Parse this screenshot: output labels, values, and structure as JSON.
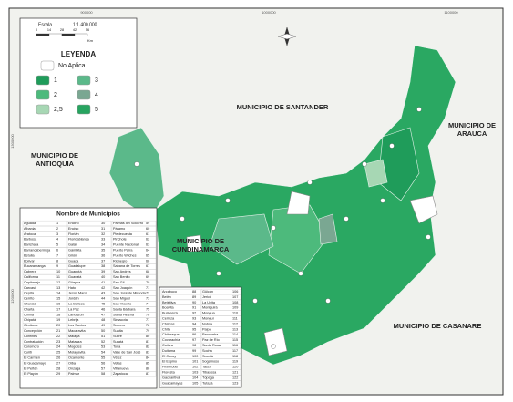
{
  "legend": {
    "title": "LEYENDA",
    "items": [
      {
        "label": "No Aplica",
        "color": "#ffffff"
      },
      {
        "label": "1",
        "color": "#1f9c5a"
      },
      {
        "label": "2",
        "color": "#4dba7c"
      },
      {
        "label": "2,5",
        "color": "#a7d7b4"
      },
      {
        "label": "3",
        "color": "#5bb98a"
      },
      {
        "label": "4",
        "color": "#7aa792"
      },
      {
        "label": "5",
        "color": "#27a460"
      }
    ]
  },
  "scale": {
    "title": "Escala",
    "ratio": "1:1.400.000",
    "ticks": [
      "0",
      "14",
      "28",
      "42",
      "56"
    ],
    "unit": "Km"
  },
  "coords": {
    "top": [
      "900000",
      "1000000",
      "1100000"
    ],
    "left": [
      "1300000",
      "1200000"
    ]
  },
  "departments": [
    "MUNICIPIO DE SANTANDER",
    "MUNICIPIO DE ARAUCA",
    "MUNICIPIO DE ANTIOQUIA",
    "MUNICIPIO DE CUNDINAMARCA",
    "MUNICIPIO DE CASANARE"
  ],
  "table": {
    "title": "Nombre de Municipios",
    "box1": [
      {
        "n": "Aguada",
        "id": "1"
      },
      {
        "n": "Albania",
        "id": "2"
      },
      {
        "n": "Aratoca",
        "id": "3"
      },
      {
        "n": "Barbosa",
        "id": "4"
      },
      {
        "n": "Barichara",
        "id": "5"
      },
      {
        "n": "Barrancabermeja",
        "id": "6"
      },
      {
        "n": "Betulia",
        "id": "7"
      },
      {
        "n": "Bolívar",
        "id": "8"
      },
      {
        "n": "Bucaramanga",
        "id": "9"
      },
      {
        "n": "Cabrera",
        "id": "10"
      },
      {
        "n": "California",
        "id": "11"
      },
      {
        "n": "Capitanejo",
        "id": "12"
      },
      {
        "n": "Carcasí",
        "id": "13"
      },
      {
        "n": "Cepitá",
        "id": "14"
      },
      {
        "n": "Cerrito",
        "id": "15"
      },
      {
        "n": "Charalá",
        "id": "16"
      },
      {
        "n": "Charta",
        "id": "17"
      },
      {
        "n": "Chima",
        "id": "18"
      },
      {
        "n": "Chipatá",
        "id": "19"
      },
      {
        "n": "Cimitarra",
        "id": "20"
      },
      {
        "n": "Concepción",
        "id": "21"
      },
      {
        "n": "Confines",
        "id": "22"
      },
      {
        "n": "Contratación",
        "id": "23"
      },
      {
        "n": "Coromoro",
        "id": "24"
      },
      {
        "n": "Curití",
        "id": "25"
      },
      {
        "n": "El Carmen",
        "id": "26"
      },
      {
        "n": "El Guacamayo",
        "id": "27"
      },
      {
        "n": "El Peñón",
        "id": "28"
      },
      {
        "n": "El Playón",
        "id": "29"
      },
      {
        "n": "Encino",
        "id": "30"
      },
      {
        "n": "Enciso",
        "id": "31"
      },
      {
        "n": "Florián",
        "id": "32"
      },
      {
        "n": "Floridablanca",
        "id": "33"
      },
      {
        "n": "Galán",
        "id": "34"
      },
      {
        "n": "Gámbita",
        "id": "35"
      },
      {
        "n": "Girón",
        "id": "36"
      },
      {
        "n": "Guaca",
        "id": "37"
      },
      {
        "n": "Guadalupe",
        "id": "38"
      },
      {
        "n": "Guapotá",
        "id": "39"
      },
      {
        "n": "Guavatá",
        "id": "40"
      },
      {
        "n": "Güepsa",
        "id": "41"
      },
      {
        "n": "Hato",
        "id": "42"
      },
      {
        "n": "Jesús María",
        "id": "43"
      },
      {
        "n": "Jordán",
        "id": "44"
      },
      {
        "n": "La Belleza",
        "id": "45"
      },
      {
        "n": "La Paz",
        "id": "46"
      },
      {
        "n": "Landázuri",
        "id": "47"
      },
      {
        "n": "Lebrija",
        "id": "48"
      },
      {
        "n": "Los Santos",
        "id": "49"
      },
      {
        "n": "Macaravita",
        "id": "50"
      },
      {
        "n": "Málaga",
        "id": "51"
      },
      {
        "n": "Matanza",
        "id": "52"
      },
      {
        "n": "Mogotes",
        "id": "53"
      },
      {
        "n": "Molagavita",
        "id": "54"
      },
      {
        "n": "Ocamonte",
        "id": "55"
      },
      {
        "n": "Oiba",
        "id": "56"
      },
      {
        "n": "Onzaga",
        "id": "57"
      },
      {
        "n": "Palmar",
        "id": "58"
      },
      {
        "n": "Palmas del Socorro",
        "id": "59"
      },
      {
        "n": "Páramo",
        "id": "60"
      },
      {
        "n": "Piedecuesta",
        "id": "61"
      },
      {
        "n": "Pinchote",
        "id": "62"
      },
      {
        "n": "Puente Nacional",
        "id": "63"
      },
      {
        "n": "Puerto Parra",
        "id": "64"
      },
      {
        "n": "Puerto Wilches",
        "id": "65"
      },
      {
        "n": "Rionegro",
        "id": "66"
      },
      {
        "n": "Sabana de Torres",
        "id": "67"
      },
      {
        "n": "San Andrés",
        "id": "68"
      },
      {
        "n": "San Benito",
        "id": "69"
      },
      {
        "n": "San Gil",
        "id": "70"
      },
      {
        "n": "San Joaquín",
        "id": "71"
      },
      {
        "n": "San José de Miranda",
        "id": "72"
      },
      {
        "n": "San Miguel",
        "id": "73"
      },
      {
        "n": "San Vicente",
        "id": "74"
      },
      {
        "n": "Santa Bárbara",
        "id": "75"
      },
      {
        "n": "Santa Helena",
        "id": "76"
      },
      {
        "n": "Simacota",
        "id": "77"
      },
      {
        "n": "Socorro",
        "id": "78"
      },
      {
        "n": "Suaita",
        "id": "79"
      },
      {
        "n": "Sucre",
        "id": "80"
      },
      {
        "n": "Suratá",
        "id": "81"
      },
      {
        "n": "Tona",
        "id": "82"
      },
      {
        "n": "Valle de San José",
        "id": "83"
      },
      {
        "n": "Vélez",
        "id": "84"
      },
      {
        "n": "Vetas",
        "id": "85"
      },
      {
        "n": "Villanueva",
        "id": "86"
      },
      {
        "n": "Zapatoca",
        "id": "87"
      }
    ],
    "box2": [
      {
        "n": "Arcabuco",
        "id": "88"
      },
      {
        "n": "Belén",
        "id": "89"
      },
      {
        "n": "Betéitiva",
        "id": "90"
      },
      {
        "n": "Boavita",
        "id": "91"
      },
      {
        "n": "Busbanzá",
        "id": "92"
      },
      {
        "n": "Cerinza",
        "id": "93"
      },
      {
        "n": "Chiscas",
        "id": "94"
      },
      {
        "n": "Chita",
        "id": "95"
      },
      {
        "n": "Chitaraque",
        "id": "96"
      },
      {
        "n": "Covarachía",
        "id": "97"
      },
      {
        "n": "Cuítiva",
        "id": "98"
      },
      {
        "n": "Duitama",
        "id": "99"
      },
      {
        "n": "El Cocuy",
        "id": "100"
      },
      {
        "n": "El Espino",
        "id": "101"
      },
      {
        "n": "Firavitoba",
        "id": "102"
      },
      {
        "n": "Floresta",
        "id": "103"
      },
      {
        "n": "Gachantivá",
        "id": "104"
      },
      {
        "n": "Guacamayas",
        "id": "105"
      },
      {
        "n": "Güicán",
        "id": "106"
      },
      {
        "n": "Jericó",
        "id": "107"
      },
      {
        "n": "La Uvita",
        "id": "108"
      },
      {
        "n": "Moniquirá",
        "id": "109"
      },
      {
        "n": "Mongua",
        "id": "110"
      },
      {
        "n": "Monguí",
        "id": "111"
      },
      {
        "n": "Nobsa",
        "id": "112"
      },
      {
        "n": "Paipa",
        "id": "113"
      },
      {
        "n": "Panqueba",
        "id": "114"
      },
      {
        "n": "Paz de Río",
        "id": "115"
      },
      {
        "n": "Santa Rosa",
        "id": "116"
      },
      {
        "n": "Socha",
        "id": "117"
      },
      {
        "n": "Socotá",
        "id": "118"
      },
      {
        "n": "Sogamoso",
        "id": "119"
      },
      {
        "n": "Tasco",
        "id": "120"
      },
      {
        "n": "Tibasosa",
        "id": "121"
      },
      {
        "n": "Tópaga",
        "id": "122"
      },
      {
        "n": "Tutazá",
        "id": "123"
      }
    ]
  }
}
